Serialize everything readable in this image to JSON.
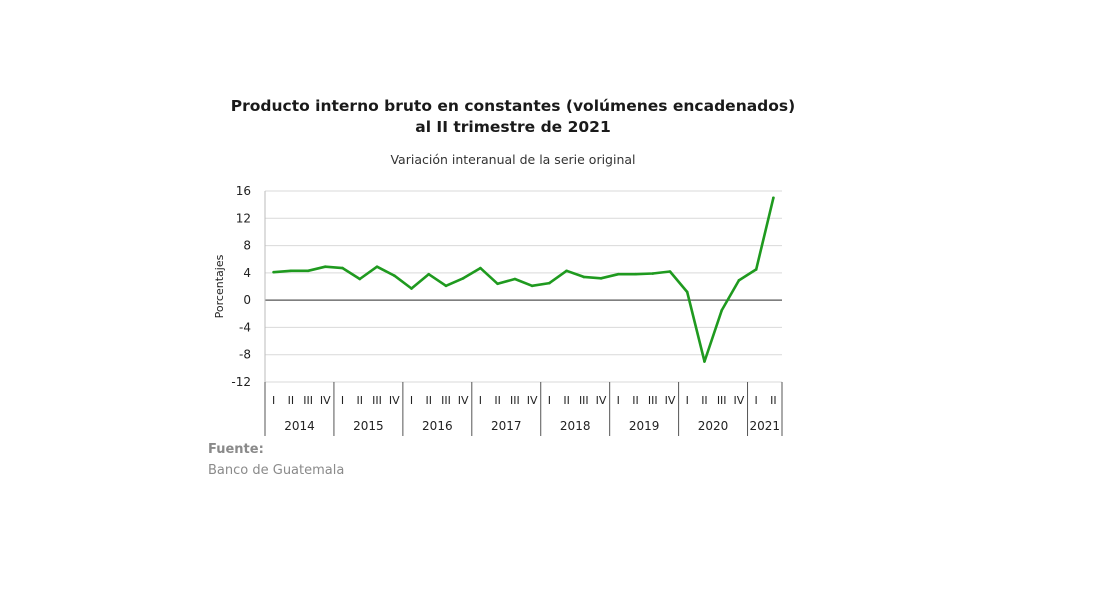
{
  "header": {
    "title_line1": "Producto interno bruto en constantes (volúmenes encadenados)",
    "title_line2": "al II trimestre de 2021",
    "subtitle": "Variación interanual de la serie original"
  },
  "source": {
    "label": "Fuente:",
    "text": "Banco de Guatemala"
  },
  "colors": {
    "line": "#1f9a1f",
    "zero_line": "#555555",
    "grid": "#d9d9d9",
    "axis_text": "#222222"
  },
  "chart_data": {
    "type": "line",
    "ylabel": "Porcentajes",
    "ylim": [
      -12,
      16
    ],
    "yticks": [
      16,
      12,
      8,
      4,
      0,
      -4,
      -8,
      -12
    ],
    "grid": true,
    "quarters": [
      "I",
      "II",
      "III",
      "IV",
      "I",
      "II",
      "III",
      "IV",
      "I",
      "II",
      "III",
      "IV",
      "I",
      "II",
      "III",
      "IV",
      "I",
      "II",
      "III",
      "IV",
      "I",
      "II",
      "III",
      "IV",
      "I",
      "II",
      "III",
      "IV",
      "I",
      "II"
    ],
    "years": [
      {
        "label": "2014",
        "count": 4
      },
      {
        "label": "2015",
        "count": 4
      },
      {
        "label": "2016",
        "count": 4
      },
      {
        "label": "2017",
        "count": 4
      },
      {
        "label": "2018",
        "count": 4
      },
      {
        "label": "2019",
        "count": 4
      },
      {
        "label": "2020",
        "count": 4
      },
      {
        "label": "2021",
        "count": 2
      }
    ],
    "series": [
      {
        "values": [
          4.1,
          4.3,
          4.3,
          4.9,
          4.7,
          3.1,
          4.9,
          3.6,
          1.7,
          3.8,
          2.1,
          3.2,
          4.7,
          2.4,
          3.1,
          2.1,
          2.5,
          4.3,
          3.4,
          3.2,
          3.8,
          3.8,
          3.9,
          4.2,
          1.2,
          -9.0,
          -1.5,
          2.9,
          4.5,
          15.0
        ]
      }
    ]
  }
}
